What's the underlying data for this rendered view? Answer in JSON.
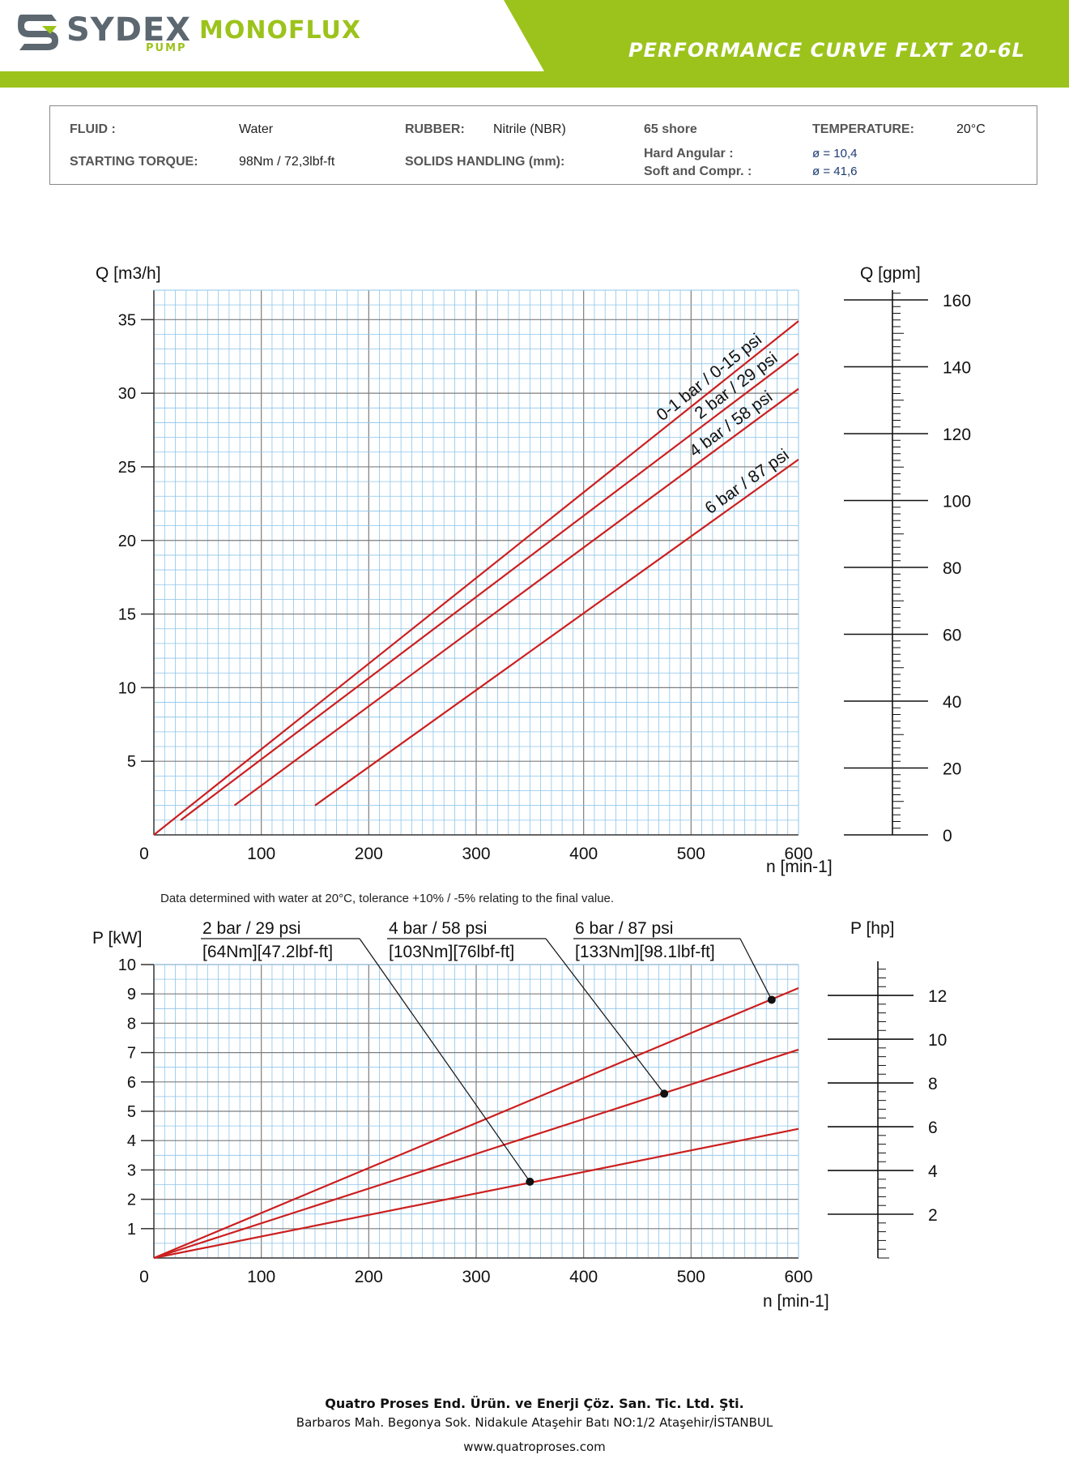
{
  "header": {
    "brand": "SYDEX",
    "brand_sub_small": "PUMP",
    "brand_product": "MONOFLUX",
    "title": "PERFORMANCE CURVE FLXT 20-6L",
    "colors": {
      "green": "#9cc31c",
      "grey": "#5c6770"
    },
    "logo_icon": "sydex-s-logo-icon"
  },
  "info": {
    "fluid_label": "FLUID :",
    "fluid_value": "Water",
    "rubber_label": "RUBBER:",
    "rubber_value": "Nitrile (NBR)",
    "shore": "65 shore",
    "temperature_label": "TEMPERATURE:",
    "temperature_value": "20°C",
    "torque_label": "STARTING TORQUE:",
    "torque_value": "98Nm / 72,3lbf-ft",
    "solids_label": "SOLIDS HANDLING (mm):",
    "hard_label": "Hard Angular :",
    "hard_value": "ø = 10,4",
    "soft_label": "Soft and Compr. :",
    "soft_value": "ø = 41,6"
  },
  "note": "Data determined with water at 20°C, tolerance +10% / -5% relating to the final value.",
  "footer": {
    "company": "Quatro Proses End. Ürün. ve Enerji Çöz. San. Tic. Ltd. Şti.",
    "address": "Barbaros Mah. Begonya Sok. Nidakule Ataşehir Batı NO:1/2 Ataşehir/İSTANBUL",
    "web": "www.quatroproses.com"
  },
  "chart_data": [
    {
      "type": "line",
      "ylabel": "Q [m3/h]",
      "xlabel": "n [min-1]",
      "y2label": "Q [gpm]",
      "xlim": [
        0,
        600
      ],
      "ylim": [
        0,
        37
      ],
      "x_ticks": [
        0,
        100,
        200,
        300,
        400,
        500,
        600
      ],
      "y_ticks": [
        5,
        10,
        15,
        20,
        25,
        30,
        35
      ],
      "y2_ticks": [
        0,
        20,
        40,
        60,
        80,
        100,
        120,
        140,
        160
      ],
      "grid": true,
      "line_color": "#cc1f1f",
      "series": [
        {
          "name": "0-1 bar / 0-15 psi",
          "x": [
            0,
            600
          ],
          "y": [
            0,
            34.9
          ]
        },
        {
          "name": "2 bar / 29 psi",
          "x": [
            25,
            600
          ],
          "y": [
            1.0,
            32.7
          ]
        },
        {
          "name": "4 bar / 58 psi",
          "x": [
            75,
            600
          ],
          "y": [
            2.0,
            30.3
          ]
        },
        {
          "name": "6 bar / 87 psi",
          "x": [
            150,
            600
          ],
          "y": [
            2.0,
            25.5
          ]
        }
      ]
    },
    {
      "type": "line",
      "ylabel": "P [kW]",
      "xlabel": "n [min-1]",
      "y2label": "P [hp]",
      "xlim": [
        0,
        600
      ],
      "ylim": [
        0,
        10
      ],
      "x_ticks": [
        0,
        100,
        200,
        300,
        400,
        500,
        600
      ],
      "y_ticks": [
        1,
        2,
        3,
        4,
        5,
        6,
        7,
        8,
        9,
        10
      ],
      "y2_ticks": [
        2,
        4,
        6,
        8,
        10,
        12
      ],
      "grid": true,
      "line_color": "#cc1f1f",
      "series": [
        {
          "name": "2 bar / 29 psi",
          "torque": "[64Nm][47.2lbf-ft]",
          "x": [
            0,
            600
          ],
          "y": [
            0,
            4.4
          ],
          "marker": [
            350,
            2.6
          ]
        },
        {
          "name": "4 bar / 58 psi",
          "torque": "[103Nm][76lbf-ft]",
          "x": [
            0,
            600
          ],
          "y": [
            0,
            7.1
          ],
          "marker": [
            475,
            5.6
          ]
        },
        {
          "name": "6 bar / 87 psi",
          "torque": "[133Nm][98.1lbf-ft]",
          "x": [
            0,
            600
          ],
          "y": [
            0,
            9.2
          ],
          "marker": [
            575,
            8.8
          ]
        }
      ]
    }
  ]
}
